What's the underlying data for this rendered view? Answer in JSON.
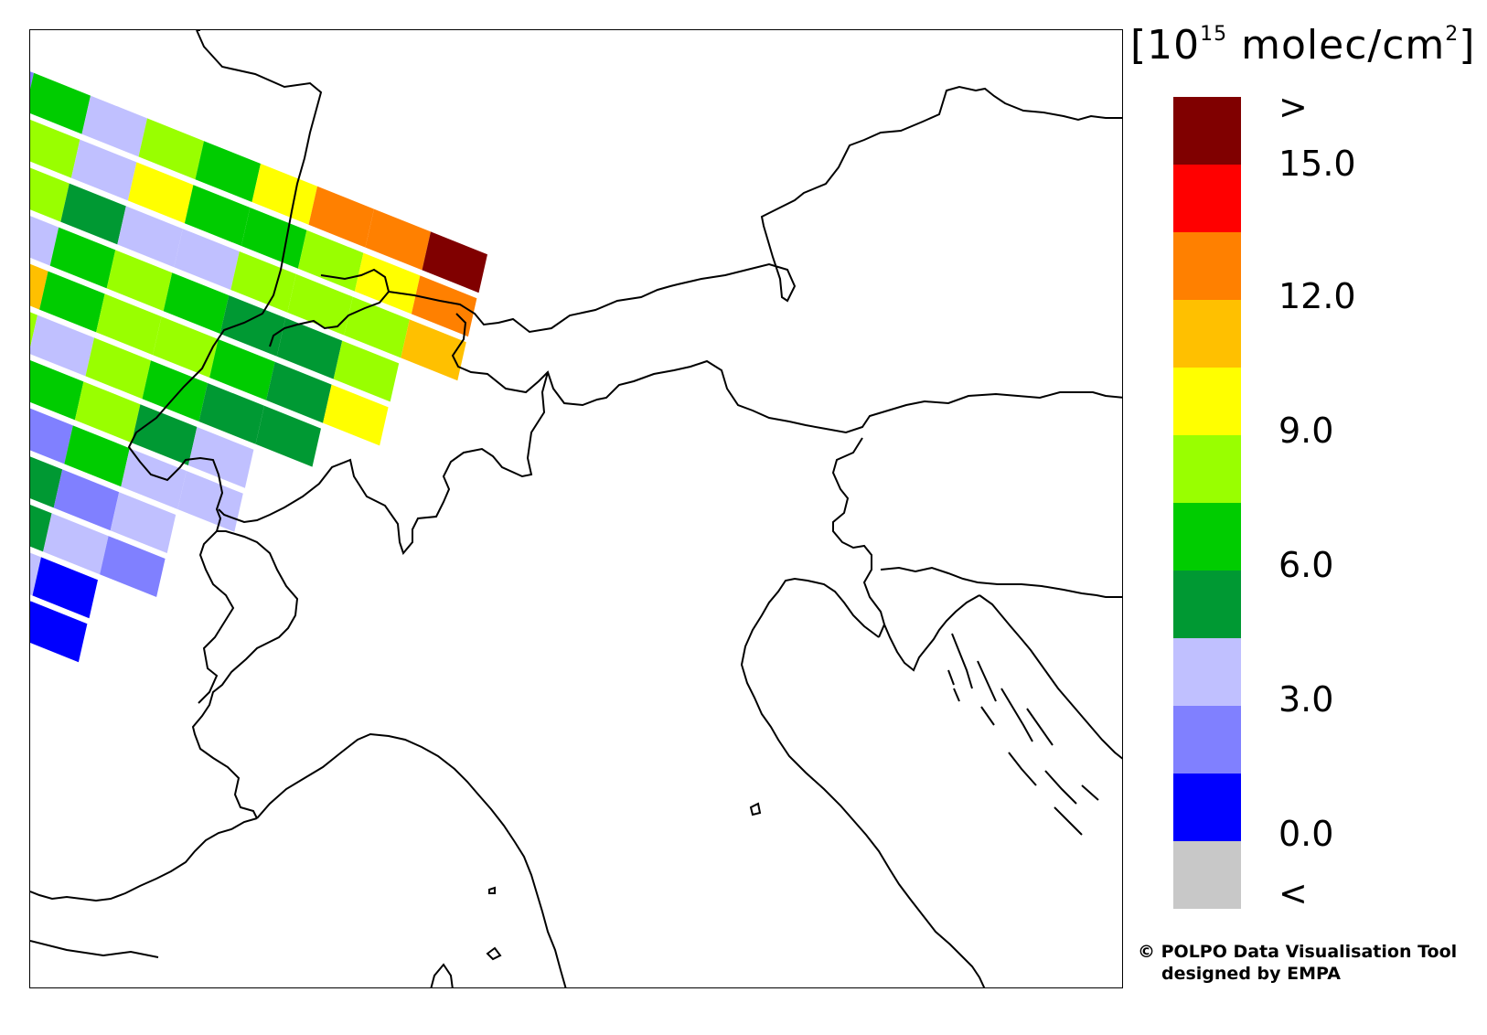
{
  "legend": {
    "units_prefix": "[10",
    "units_exp": "15",
    "units_suffix": " molec/cm",
    "units_exp2": "2",
    "units_close": "]",
    "over_label": ">",
    "under_label": "<",
    "tick_labels": [
      "15.0",
      "12.0",
      "9.0",
      "6.0",
      "3.0",
      "0.0"
    ],
    "bins": [
      {
        "range": "> 16.5",
        "color": "#800000"
      },
      {
        "range": "15.0 – 16.5",
        "color": "#ff0000"
      },
      {
        "range": "13.5 – 15.0",
        "color": "#ff8000"
      },
      {
        "range": "12.0 – 13.5",
        "color": "#ffc000"
      },
      {
        "range": "10.5 – 12.0",
        "color": "#ffff00"
      },
      {
        "range": "9.0 – 10.5",
        "color": "#99ff00"
      },
      {
        "range": "7.5 – 9.0",
        "color": "#00cc00"
      },
      {
        "range": "6.0 – 7.5",
        "color": "#009933"
      },
      {
        "range": "4.5 – 6.0",
        "color": "#c0c0ff"
      },
      {
        "range": "3.0 – 4.5",
        "color": "#8080ff"
      },
      {
        "range": "1.5 – 3.0",
        "color": "#0000ff"
      },
      {
        "range": "< 0.0",
        "color": "#c8c8c8"
      }
    ]
  },
  "credit": {
    "line1": "© POLPO Data Visualisation Tool",
    "line2": "designed by EMPA"
  },
  "swath": {
    "note": "satellite ground pixels, rows ordered north to south, cells west to east; values are color-bin indices (0 = lowest visible bin)",
    "rows": [
      [
        "#8080ff",
        "#00cc00",
        "#c0c0ff",
        "#99ff00",
        "#00cc00",
        "#ffff00",
        "#ff8000",
        "#ff8000",
        "#800000"
      ],
      [
        "#009933",
        "#99ff00",
        "#c0c0ff",
        "#ffff00",
        "#00cc00",
        "#00cc00",
        "#99ff00",
        "#ffff00",
        "#ff8000"
      ],
      [
        "#ffc000",
        "#99ff00",
        "#009933",
        "#c0c0ff",
        "#c0c0ff",
        "#99ff00",
        "#99ff00",
        "#99ff00",
        "#ffc000"
      ],
      [
        "#009933",
        "#c0c0ff",
        "#00cc00",
        "#99ff00",
        "#00cc00",
        "#009933",
        "#009933",
        "#99ff00"
      ],
      [
        "#009933",
        "#ffc000",
        "#00cc00",
        "#99ff00",
        "#99ff00",
        "#00cc00",
        "#009933",
        "#ffff00"
      ],
      [
        "#ffff00",
        "#99ff00",
        "#c0c0ff",
        "#99ff00",
        "#00cc00",
        "#009933",
        "#009933"
      ],
      [
        "#99ff00",
        "#c0c0ff",
        "#00cc00",
        "#99ff00",
        "#009933",
        "#c0c0ff"
      ],
      [
        "#ffff00",
        "#009933",
        "#8080ff",
        "#00cc00",
        "#c0c0ff",
        "#c0c0ff"
      ],
      [
        "#00cc00",
        "#ffff00",
        "#009933",
        "#8080ff",
        "#c0c0ff"
      ],
      [
        "#009933",
        "#99ff00",
        "#009933",
        "#c0c0ff",
        "#8080ff"
      ],
      [
        "#00cc00",
        "#009933",
        "#c0c0ff",
        "#0000ff"
      ],
      [
        "#009933",
        "#c0c0ff",
        "#8080ff",
        "#0000ff"
      ]
    ]
  }
}
